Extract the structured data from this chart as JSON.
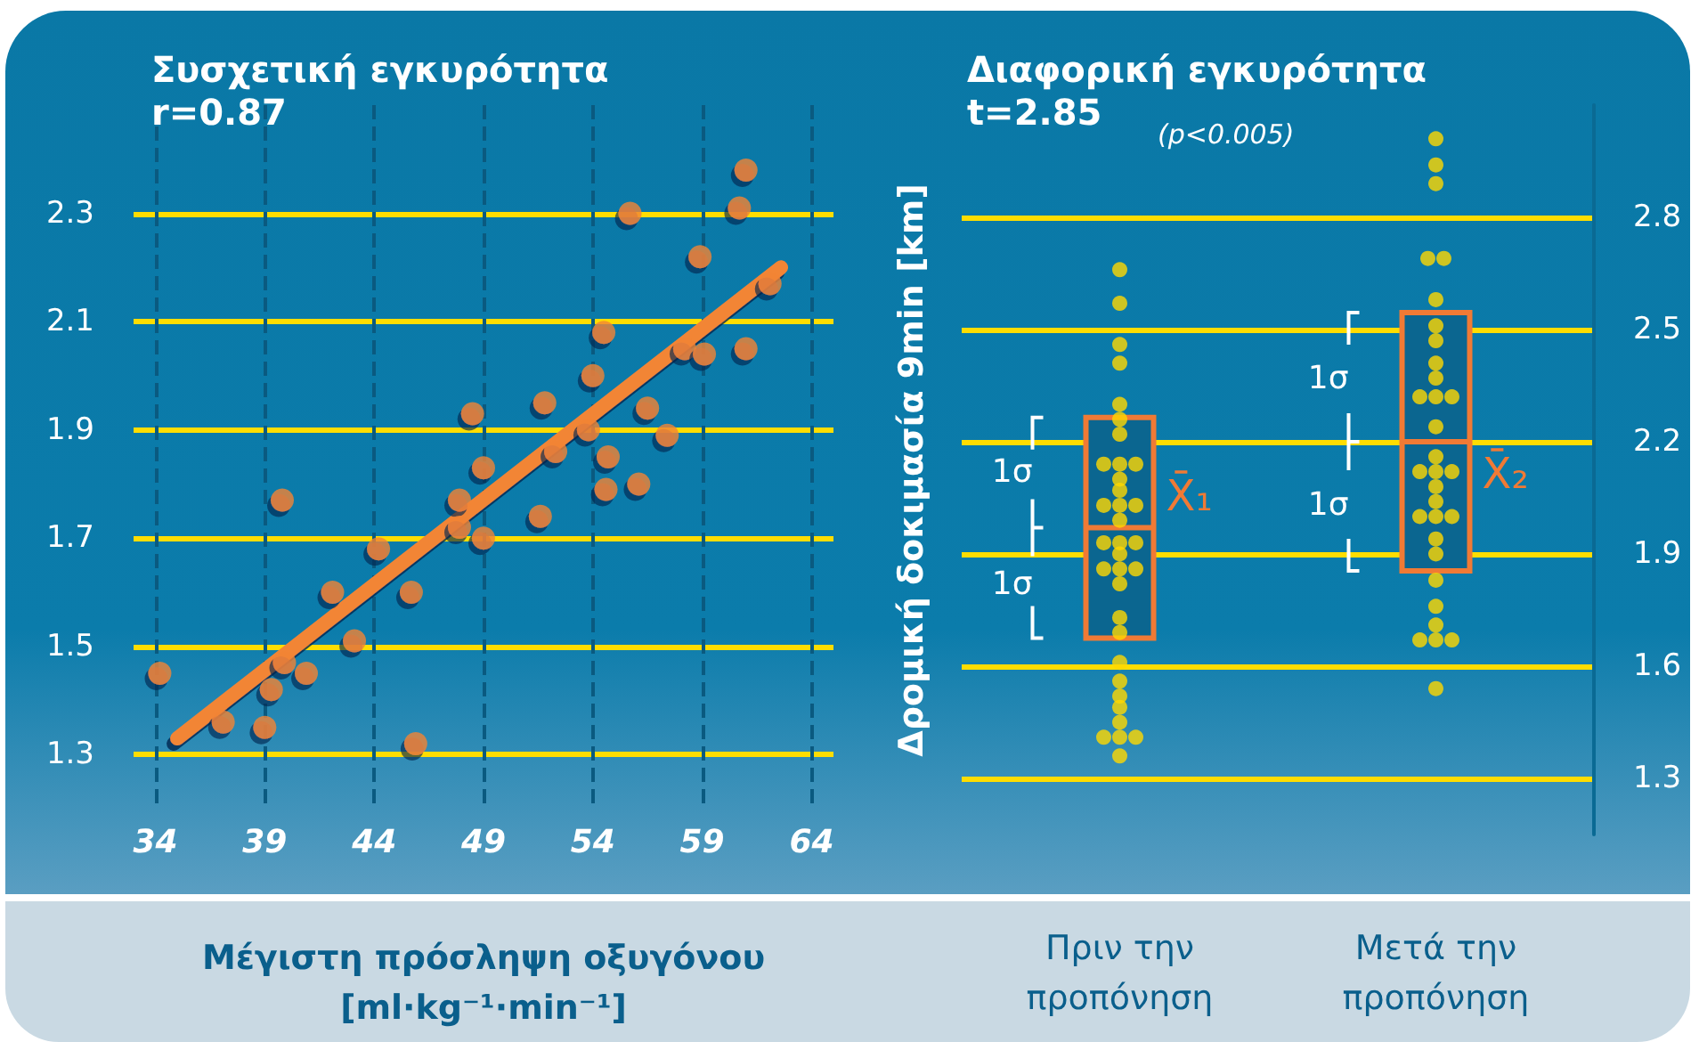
{
  "chart_data": [
    {
      "type": "scatter",
      "title": "Συσχετική εγκυρότητα",
      "subtitle": "r=0.87",
      "xlabel": "Μέγιστη πρόσληψη οξυγόνου [ml·kg⁻¹·min⁻¹]",
      "xlim": [
        33,
        65
      ],
      "xticks": [
        34,
        39,
        44,
        49,
        54,
        59,
        64
      ],
      "ylim": [
        1.2,
        2.5
      ],
      "yticks": [
        1.3,
        1.5,
        1.7,
        1.9,
        2.1,
        2.3
      ],
      "grid": true,
      "series": [
        {
          "type": "scatter",
          "marker": "circle",
          "color": "#f28535",
          "x": [
            34.2,
            37.1,
            39.0,
            39.3,
            39.9,
            40.9,
            39.8,
            42.1,
            43.1,
            44.2,
            45.7,
            45.9,
            47.9,
            47.9,
            48.5,
            49.0,
            49.0,
            51.6,
            51.8,
            52.3,
            53.8,
            54.0,
            54.5,
            54.7,
            54.6,
            55.7,
            56.1,
            56.5,
            57.4,
            58.2,
            58.9,
            59.1,
            60.7,
            61.0,
            61.0,
            62.1
          ],
          "values": [
            1.45,
            1.36,
            1.35,
            1.42,
            1.47,
            1.45,
            1.77,
            1.6,
            1.51,
            1.68,
            1.6,
            1.32,
            1.77,
            1.72,
            1.93,
            1.83,
            1.7,
            1.74,
            1.95,
            1.86,
            1.9,
            2.0,
            2.08,
            1.85,
            1.79,
            2.3,
            1.8,
            1.94,
            1.89,
            2.05,
            2.22,
            2.04,
            2.31,
            2.38,
            2.05,
            2.17
          ]
        },
        {
          "type": "line",
          "color": "#f28535",
          "x": [
            35,
            62.6
          ],
          "values": [
            1.33,
            2.2
          ]
        }
      ]
    },
    {
      "type": "scatter",
      "title": "Διαφορική εγκυρότητα",
      "subtitle": "t=2.85",
      "ylabel": "Δρομική δοκιμασία 9min [km]",
      "categories": [
        "Πριν την προπόνηση",
        "Μετά την προπόνηση"
      ],
      "ylim": [
        1.15,
        3.1
      ],
      "yticks": [
        1.3,
        1.6,
        1.9,
        2.2,
        2.5,
        2.8
      ],
      "grid": "y",
      "annotations": [
        "(p<0.005)",
        {
          "text": "X̄₁",
          "x": "Πριν την προπόνηση",
          "y": 1.97
        },
        {
          "text": "X̄₂",
          "x": "Μετά την προπόνηση",
          "y": 2.2
        },
        {
          "text": "1σ",
          "x": "Πριν την προπόνηση",
          "y": 2.12
        },
        {
          "text": "1σ",
          "x": "Πριν την προπόνηση",
          "y": 1.82
        },
        {
          "text": "1σ",
          "x": "Μετά την προπόνηση",
          "y": 2.37
        },
        {
          "text": "1σ",
          "x": "Μετά την προπόνηση",
          "y": 2.03
        }
      ],
      "series": [
        {
          "type": "scatter",
          "marker": "circle",
          "color": "#ffd800",
          "x": [
            "Πριν την προπόνηση",
            "Πριν την προπόνηση",
            "Πριν την προπόνηση",
            "Πριν την προπόνηση",
            "Πριν την προπόνηση",
            "Πριν την προπόνηση",
            "Πριν την προπόνηση",
            "Πριν την προπόνηση",
            "Πριν την προπόνηση",
            "Πριν την προπόνηση",
            "Πριν την προπόνηση",
            "Πριν την προπόνηση",
            "Πριν την προπόνηση",
            "Πριν την προπόνηση",
            "Πριν την προπόνηση",
            "Πριν την προπόνηση",
            "Πριν την προπόνηση",
            "Πριν την προπόνηση",
            "Πριν την προπόνηση",
            "Πριν την προπόνηση",
            "Πριν την προπόνηση",
            "Πριν την προπόνηση",
            "Πριν την προπόνηση",
            "Πριν την προπόνηση",
            "Πριν την προπόνηση",
            "Πριν την προπόνηση",
            "Πριν την προπόνηση",
            "Πριν την προπόνηση",
            "Πριν την προπόνηση",
            "Πριν την προπόνηση",
            "Πριν την προπόνηση",
            "Πριν την προπόνηση",
            "Πριν την προπόνηση",
            "Πριν την προπόνηση",
            "Πριν την προπόνηση",
            "Μετά την προπόνηση",
            "Μετά την προπόνηση",
            "Μετά την προπόνηση",
            "Μετά την προπόνηση",
            "Μετά την προπόνηση",
            "Μετά την προπόνηση",
            "Μετά την προπόνηση",
            "Μετά την προπόνηση",
            "Μετά την προπόνηση",
            "Μετά την προπόνηση",
            "Μετά την προπόνηση",
            "Μετά την προπόνηση",
            "Μετά την προπόνηση",
            "Μετά την προπόνηση",
            "Μετά την προπόνηση",
            "Μετά την προπόνηση",
            "Μετά την προπόνηση",
            "Μετά την προπόνηση",
            "Μετά την προπόνηση",
            "Μετά την προπόνηση",
            "Μετά την προπόνηση",
            "Μετά την προπόνηση",
            "Μετά την προπόνηση",
            "Μετά την προπόνηση",
            "Μετά την προπόνηση",
            "Μετά την προπόνηση",
            "Μετά την προπόνηση",
            "Μετά την προπόνηση",
            "Μετά την προπόνηση",
            "Μετά την προπόνηση",
            "Μετά την προπόνηση",
            "Μετά την προπόνηση"
          ],
          "values": [
            2.66,
            2.57,
            2.46,
            2.41,
            2.3,
            2.26,
            2.22,
            2.14,
            2.14,
            2.14,
            2.1,
            2.07,
            2.03,
            2.03,
            2.03,
            1.99,
            1.93,
            1.93,
            1.93,
            1.9,
            1.86,
            1.86,
            1.86,
            1.82,
            1.73,
            1.69,
            1.61,
            1.56,
            1.52,
            1.49,
            1.45,
            1.41,
            1.41,
            1.41,
            1.36,
            3.01,
            2.94,
            2.89,
            2.69,
            2.69,
            2.58,
            2.51,
            2.47,
            2.41,
            2.37,
            2.32,
            2.32,
            2.32,
            2.24,
            2.16,
            2.12,
            2.12,
            2.12,
            2.08,
            2.04,
            2.0,
            2.0,
            2.0,
            1.94,
            1.9,
            1.83,
            1.76,
            1.71,
            1.67,
            1.67,
            1.67,
            1.54
          ]
        },
        {
          "type": "box",
          "color": "#f07a35",
          "boxes": [
            {
              "low": 1.675,
              "q1": 1.675,
              "median": 1.97,
              "q3": 2.265,
              "high": 2.265
            },
            {
              "low": 1.855,
              "q1": 1.855,
              "median": 2.2,
              "q3": 2.545,
              "high": 2.545
            }
          ]
        }
      ]
    }
  ]
}
